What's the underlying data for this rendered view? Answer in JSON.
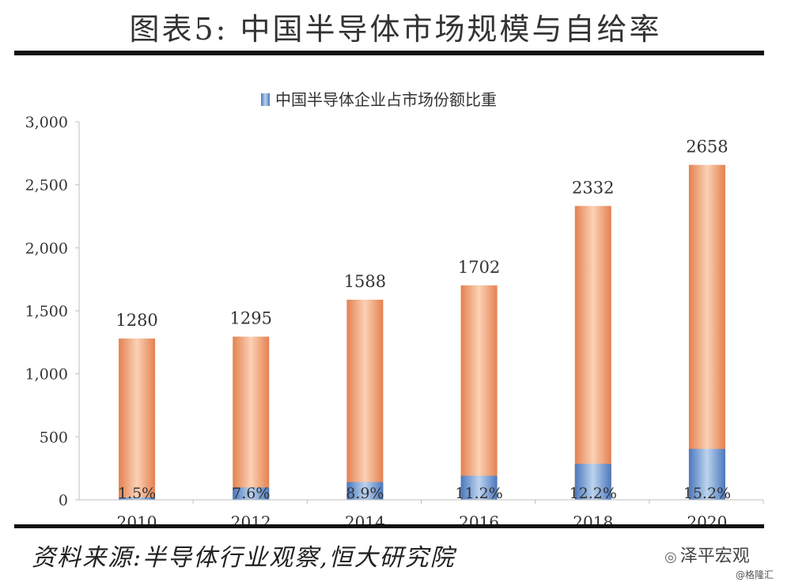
{
  "title": "图表5:  中国半导体市场规模与自给率",
  "source": "资料来源:半导体行业观察,恒大研究院",
  "brand": "泽平宏观",
  "watermark": "@格隆汇",
  "colors": {
    "market_bar": "#f2a77d",
    "market_bar_edge": "#e07a4c",
    "share_bar": "#7ea6d8",
    "share_bar_edge": "#3f6fb5",
    "axis": "#bfbfbf",
    "text": "#333333"
  },
  "chart_data": {
    "type": "bar",
    "categories": [
      "2010",
      "2012",
      "2014",
      "2016",
      "2018",
      "2020"
    ],
    "series": [
      {
        "name": "",
        "values": [
          1280,
          1295,
          1588,
          1702,
          2332,
          2658
        ],
        "labels": [
          "1280",
          "1295",
          "1588",
          "1702",
          "2332",
          "2658"
        ]
      },
      {
        "name": "中国半导体企业占市场份额比重",
        "values": [
          19,
          98,
          141,
          191,
          285,
          404
        ],
        "labels": [
          "1.5%",
          "7.6%",
          "8.9%",
          "11.2%",
          "12.2%",
          "15.2%"
        ]
      }
    ],
    "ylim": [
      0,
      3000
    ],
    "yticks": [
      0,
      500,
      1000,
      1500,
      2000,
      2500,
      3000
    ],
    "ytick_labels": [
      "0",
      "500",
      "1,000",
      "1,500",
      "2,000",
      "2,500",
      "3,000"
    ],
    "legend_position": "top-center",
    "grid": false
  }
}
